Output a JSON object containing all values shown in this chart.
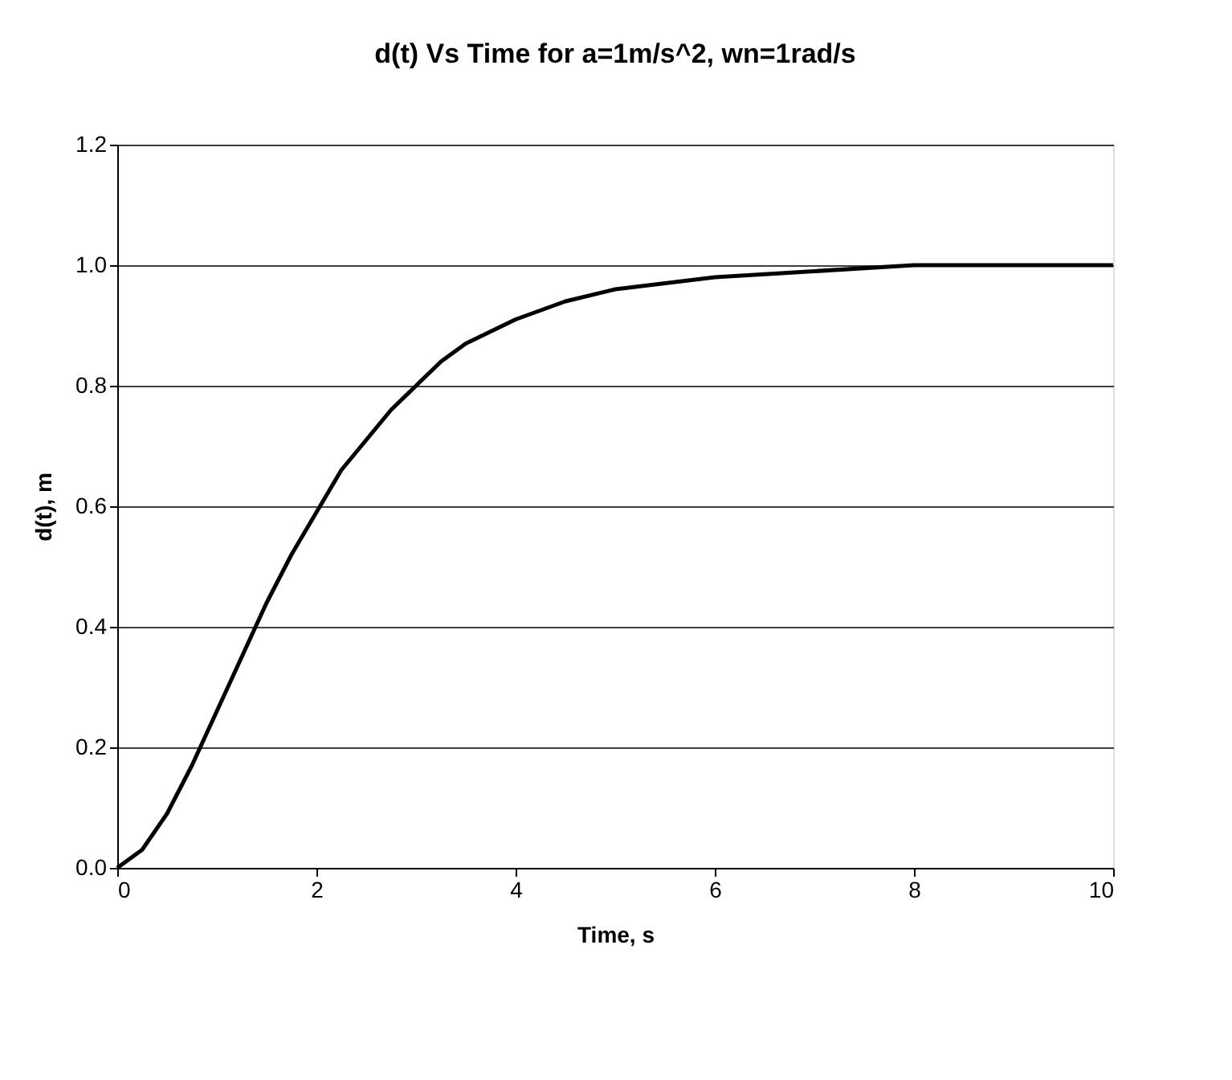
{
  "chart_data": {
    "type": "line",
    "title": "d(t) Vs Time for a=1m/s^2, wn=1rad/s",
    "xlabel": "Time, s",
    "ylabel": "d(t), m",
    "x": [
      0,
      0.25,
      0.5,
      0.75,
      1,
      1.25,
      1.5,
      1.75,
      2,
      2.25,
      2.5,
      2.75,
      3,
      3.25,
      3.5,
      3.75,
      4,
      4.5,
      5,
      5.5,
      6,
      7,
      8,
      9,
      10
    ],
    "series": [
      {
        "color": "#000000",
        "values": [
          0,
          0.03,
          0.09,
          0.17,
          0.26,
          0.35,
          0.44,
          0.52,
          0.59,
          0.66,
          0.71,
          0.76,
          0.8,
          0.84,
          0.87,
          0.89,
          0.91,
          0.94,
          0.96,
          0.97,
          0.98,
          0.99,
          1.0,
          1.0,
          1.0
        ]
      }
    ],
    "xlim": [
      0,
      10
    ],
    "xticks": [
      0,
      2,
      4,
      6,
      8,
      10
    ],
    "ylim": [
      0,
      1.2
    ],
    "yticks": [
      {
        "value": 0,
        "label": "0.0"
      },
      {
        "value": 0.2,
        "label": "0.2"
      },
      {
        "value": 0.4,
        "label": "0.4"
      },
      {
        "value": 0.6,
        "label": "0.6"
      },
      {
        "value": 0.8,
        "label": "0.8"
      },
      {
        "value": 1.0,
        "label": "1.0"
      },
      {
        "value": 1.2,
        "label": "1.2"
      }
    ],
    "grid": "y",
    "marker": "none",
    "line_style": "solid"
  }
}
